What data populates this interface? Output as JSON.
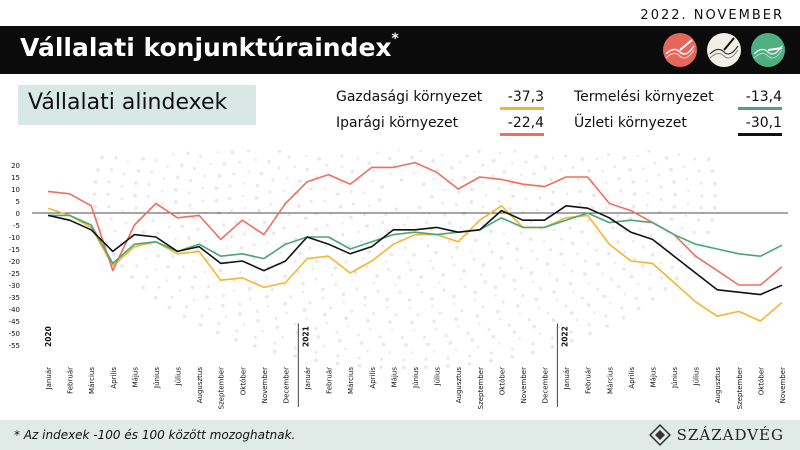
{
  "header": {
    "date": "2022. NOVEMBER",
    "title": "Vállalati konjunktúraindex",
    "title_mark": "*",
    "icons": [
      "red-dial-icon",
      "white-dial-icon",
      "green-dial-icon"
    ]
  },
  "subtitle": "Vállalati alindexek",
  "legend": [
    {
      "label": "Gazdasági környezet",
      "value": "-37,3",
      "color": "#f2b632"
    },
    {
      "label": "Iparági környezet",
      "value": "-22,4",
      "color": "#ef6f5e"
    },
    {
      "label": "Termelési környezet",
      "value": "-13,4",
      "color": "#4aa678"
    },
    {
      "label": "Üzleti környezet",
      "value": "-30,1",
      "color": "#111111"
    }
  ],
  "footer": {
    "note": "* Az indexek -100 és 100 között mozoghatnak.",
    "brand": "SZÁZADVÉG"
  },
  "chart_data": {
    "type": "line",
    "x": [
      "Január",
      "Február",
      "Március",
      "Április",
      "Május",
      "Június",
      "Július",
      "Augusztus",
      "Szeptember",
      "Október",
      "November",
      "December",
      "Január",
      "Február",
      "Március",
      "Április",
      "Május",
      "Június",
      "Július",
      "Augusztus",
      "Szeptember",
      "Október",
      "November",
      "December",
      "Január",
      "Február",
      "Március",
      "Április",
      "Május",
      "Június",
      "Július",
      "Augusztus",
      "Szeptember",
      "Október",
      "November"
    ],
    "years": [
      {
        "label": "2020",
        "index": 0
      },
      {
        "label": "2021",
        "index": 12
      },
      {
        "label": "2022",
        "index": 24
      }
    ],
    "ylim": [
      -55,
      20
    ],
    "yticks": [
      20,
      15,
      10,
      5,
      0,
      -5,
      -10,
      -15,
      -20,
      -25,
      -30,
      -35,
      -40,
      -45,
      -50,
      -55
    ],
    "series": [
      {
        "name": "Gazdasági környezet",
        "color": "#f2b632",
        "values": [
          2,
          -1,
          -6,
          -22,
          -14,
          -12,
          -17,
          -16,
          -28,
          -27,
          -31,
          -29,
          -19,
          -18,
          -25,
          -20,
          -13,
          -9,
          -9,
          -12,
          -3,
          3,
          -6,
          -6,
          -2,
          -1,
          -13,
          -20,
          -21,
          -29,
          -37,
          -43,
          -41,
          -45,
          -37.3
        ]
      },
      {
        "name": "Iparági környezet",
        "color": "#ef6f5e",
        "values": [
          9,
          8,
          3,
          -24,
          -5,
          4,
          -2,
          -1,
          -11,
          -3,
          -9,
          4,
          13,
          16,
          12,
          19,
          19,
          21,
          17,
          10,
          15,
          14,
          12,
          11,
          15,
          15,
          4,
          1,
          -4,
          -9,
          -18,
          -24,
          -30,
          -30,
          -22.4
        ]
      },
      {
        "name": "Termelési környezet",
        "color": "#4aa678",
        "values": [
          -1,
          -1,
          -5,
          -21,
          -13,
          -12,
          -16,
          -13,
          -18,
          -17,
          -19,
          -13,
          -10,
          -10,
          -15,
          -12,
          -9,
          -8,
          -9,
          -8,
          -7,
          -2,
          -6,
          -6,
          -3,
          0,
          -4,
          -3,
          -4,
          -9,
          -13,
          -15,
          -17,
          -18,
          -13.4
        ]
      },
      {
        "name": "Üzleti környezet",
        "color": "#111111",
        "values": [
          -1,
          -3,
          -7,
          -16,
          -9,
          -10,
          -16,
          -14,
          -21,
          -20,
          -24,
          -20,
          -10,
          -13,
          -17,
          -14,
          -7,
          -7,
          -6,
          -8,
          -7,
          1,
          -3,
          -3,
          3,
          2,
          -2,
          -8,
          -11,
          -18,
          -25,
          -32,
          -33,
          -34,
          -30.1
        ]
      }
    ]
  }
}
